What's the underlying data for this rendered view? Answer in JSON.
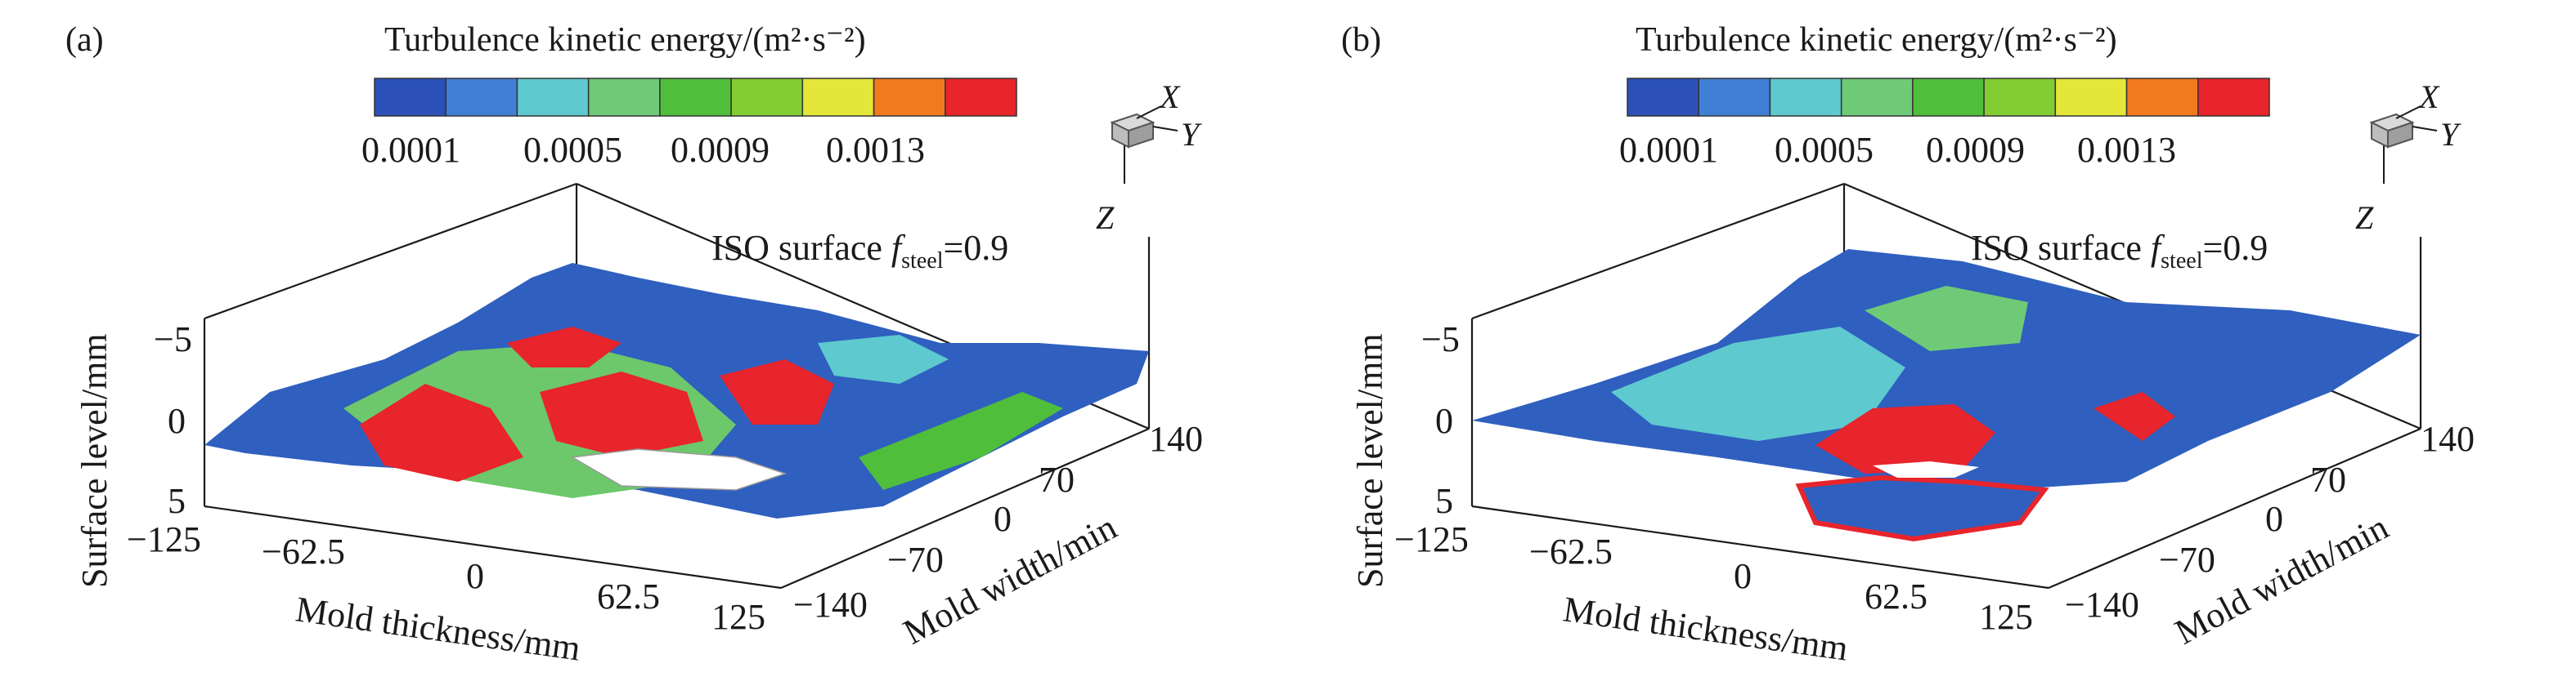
{
  "chart_data": [
    {
      "type": "surface",
      "panel_label": "(a)",
      "colorbar": {
        "title": "Turbulence kinetic energy/(m²·s⁻²)",
        "tick_labels": [
          "0.0001",
          "0.0005",
          "0.0009",
          "0.0013"
        ],
        "colors": [
          "#2b50b8",
          "#3f7fd6",
          "#5ec9cf",
          "#6fca78",
          "#4fbf3b",
          "#83cc33",
          "#e4e63a",
          "#f27a1e",
          "#e8242c"
        ]
      },
      "annotation": {
        "text": "ISO surface ",
        "var": "f",
        "sub": "steel",
        "rest": "=0.9"
      },
      "axes": {
        "x": {
          "label": "Mold thickness/mm",
          "ticks": [
            "−125",
            "−62.5",
            "0",
            "62.5",
            "125"
          ]
        },
        "y": {
          "label": "Mold width/min",
          "ticks": [
            "−140",
            "−70",
            "0",
            "70",
            "140"
          ]
        },
        "z": {
          "label": "Surface level/mm",
          "ticks": [
            "−5",
            "0",
            "5"
          ]
        }
      },
      "triad": {
        "x": "X",
        "y": "Y",
        "z": "Z"
      }
    },
    {
      "type": "surface",
      "panel_label": "(b)",
      "colorbar": {
        "title": "Turbulence kinetic energy/(m²·s⁻²)",
        "tick_labels": [
          "0.0001",
          "0.0005",
          "0.0009",
          "0.0013"
        ],
        "colors": [
          "#2b50b8",
          "#3f7fd6",
          "#5ec9cf",
          "#6fca78",
          "#4fbf3b",
          "#83cc33",
          "#e4e63a",
          "#f27a1e",
          "#e8242c"
        ]
      },
      "annotation": {
        "text": "ISO surface ",
        "var": "f",
        "sub": "steel",
        "rest": "=0.9"
      },
      "axes": {
        "x": {
          "label": "Mold thickness/mm",
          "ticks": [
            "−125",
            "−62.5",
            "0",
            "62.5",
            "125"
          ]
        },
        "y": {
          "label": "Mold width/min",
          "ticks": [
            "−140",
            "−70",
            "0",
            "70",
            "140"
          ]
        },
        "z": {
          "label": "Surface level/mm",
          "ticks": [
            "−5",
            "0",
            "5"
          ]
        }
      },
      "triad": {
        "x": "X",
        "y": "Y",
        "z": "Z"
      }
    }
  ]
}
